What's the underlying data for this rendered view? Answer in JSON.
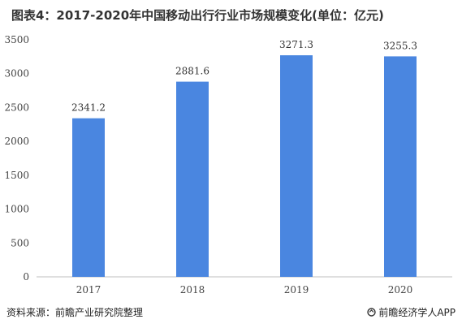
{
  "chart_data": {
    "type": "bar",
    "title": "图表4：2017-2020年中国移动出行行业市场规模变化(单位：亿元)",
    "categories": [
      "2017",
      "2018",
      "2019",
      "2020"
    ],
    "values": [
      2341.2,
      2881.6,
      3271.3,
      3255.3
    ],
    "value_labels": [
      "2341.2",
      "2881.6",
      "3271.3",
      "3255.3"
    ],
    "ylim": [
      0,
      3500
    ],
    "yticks": [
      0,
      500,
      1000,
      1500,
      2000,
      2500,
      3000,
      3500
    ],
    "xlabel": "",
    "ylabel": "",
    "grid": false,
    "bar_color": "#4a86e0"
  },
  "footer": {
    "source": "资料来源：前瞻产业研究院整理",
    "brand": "前瞻经济学人APP"
  },
  "icons": {
    "brand": "brand-logo-icon"
  }
}
